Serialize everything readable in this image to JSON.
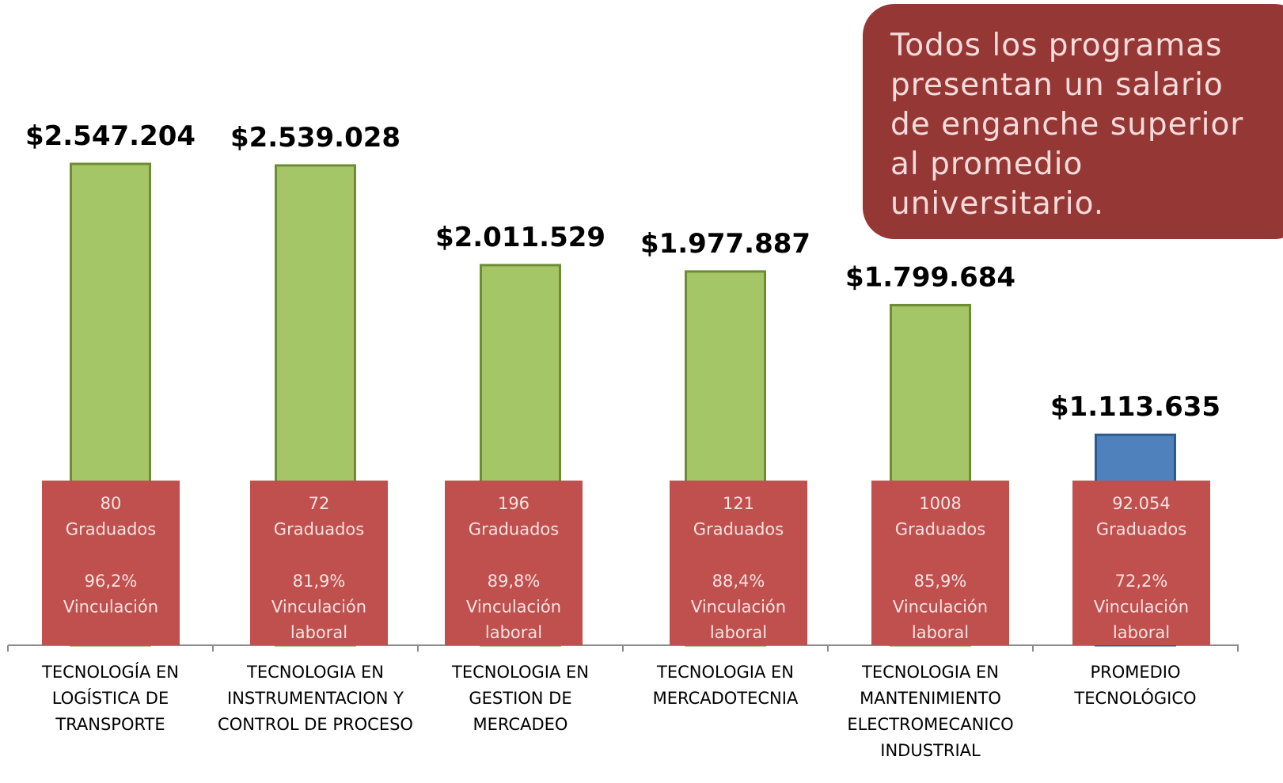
{
  "chart_data": {
    "type": "bar",
    "categories": [
      [
        "TECNOLOGÍA EN",
        "LOGÍSTICA DE",
        "TRANSPORTE"
      ],
      [
        "TECNOLOGIA EN",
        "INSTRUMENTACION Y",
        "CONTROL DE PROCESO"
      ],
      [
        "TECNOLOGIA EN",
        "GESTION DE",
        "MERCADEO"
      ],
      [
        "TECNOLOGIA EN",
        "MERCADOTECNIA"
      ],
      [
        "TECNOLOGIA EN",
        "MANTENIMIENTO",
        "ELECTROMECANICO",
        "INDUSTRIAL"
      ],
      [
        "PROMEDIO",
        "TECNOLÓGICO"
      ]
    ],
    "values": [
      2547204,
      2539028,
      2011529,
      1977887,
      1799684,
      1113635
    ],
    "value_labels": [
      "$2.547.204",
      "$2.539.028",
      "$2.011.529",
      "$1.977.887",
      "$1.799.684",
      "$1.113.635"
    ],
    "colors": [
      "#a5c566",
      "#a5c566",
      "#a5c566",
      "#a5c566",
      "#a5c566",
      "#4f81bd"
    ],
    "boxes": [
      [
        [
          "80",
          "Graduados"
        ],
        [
          "96,2%",
          "Vinculación"
        ]
      ],
      [
        [
          "72",
          "Graduados"
        ],
        [
          "81,9%",
          "Vinculación",
          "laboral"
        ]
      ],
      [
        [
          "196",
          "Graduados"
        ],
        [
          "89,8%",
          "Vinculación",
          "laboral"
        ]
      ],
      [
        [
          "121",
          "Graduados"
        ],
        [
          "88,4%",
          "Vinculación",
          "laboral"
        ]
      ],
      [
        [
          "1008",
          "Graduados"
        ],
        [
          "85,9%",
          "Vinculación",
          "laboral"
        ]
      ],
      [
        [
          "92.054",
          "Graduados"
        ],
        [
          "72,2%",
          "Vinculación",
          "laboral"
        ]
      ]
    ],
    "callout": [
      "Todos los programas",
      "presentan un salario",
      "de enganche superior",
      "al promedio",
      "universitario."
    ]
  }
}
